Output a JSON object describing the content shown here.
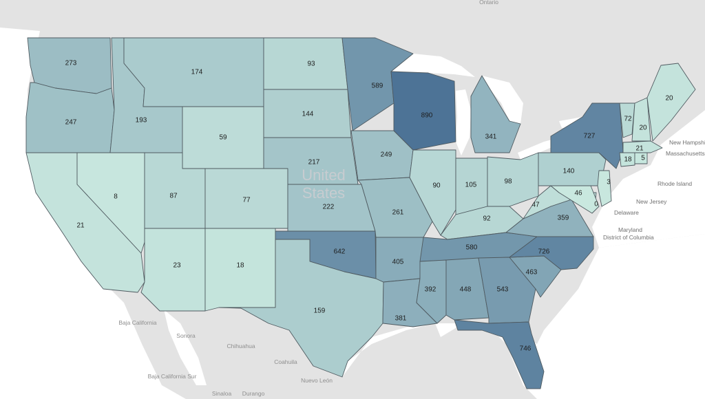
{
  "map": {
    "country_label_line1": "United",
    "country_label_line2": "States",
    "place_names": {
      "ontario": "Ontario",
      "baja_california": "Baja California",
      "baja_california_sur": "Baja California Sur",
      "sonora": "Sonora",
      "chihuahua": "Chihuahua",
      "coahuila": "Coahuila",
      "nuevo_leon": "Nuevo León",
      "sinaloa": "Sinaloa",
      "durango": "Durango"
    },
    "side_labels": {
      "new_hampshire": "New Hampshire",
      "massachusetts": "Massachusetts",
      "rhode_island": "Rhode Island",
      "new_jersey": "New Jersey",
      "delaware": "Delaware",
      "maryland": "Maryland",
      "district_of_columbia": "District of Columbia"
    },
    "color_scale": {
      "low": "#c9e8df",
      "high": "#4d7396",
      "min": 0,
      "max": 890
    },
    "water_color": "#ffffff",
    "land_color": "#e3e3e3"
  },
  "states": {
    "WA": 273,
    "OR": 247,
    "CA": 21,
    "ID": 193,
    "NV": 8,
    "MT": 174,
    "WY": 59,
    "UT": 87,
    "AZ": 23,
    "CO": 77,
    "NM": 18,
    "ND": 93,
    "SD": 144,
    "NE": 217,
    "KS": 222,
    "OK": 642,
    "TX": 159,
    "MN": 589,
    "IA": 249,
    "MO": 261,
    "AR": 405,
    "LA": 381,
    "WI": 890,
    "IL": 90,
    "MI": 341,
    "IN": 105,
    "OH": 98,
    "KY": 92,
    "TN": 580,
    "MS": 392,
    "AL": 448,
    "GA": 543,
    "FL": 746,
    "SC": 463,
    "NC": 726,
    "VA": 359,
    "WV": 47,
    "PA": 140,
    "NY": 727,
    "VT": 72,
    "NH": 20,
    "ME": 20,
    "MA": 21,
    "CT": 18,
    "RI": 5,
    "NJ": 3,
    "DE": 46,
    "MD": 0
  }
}
